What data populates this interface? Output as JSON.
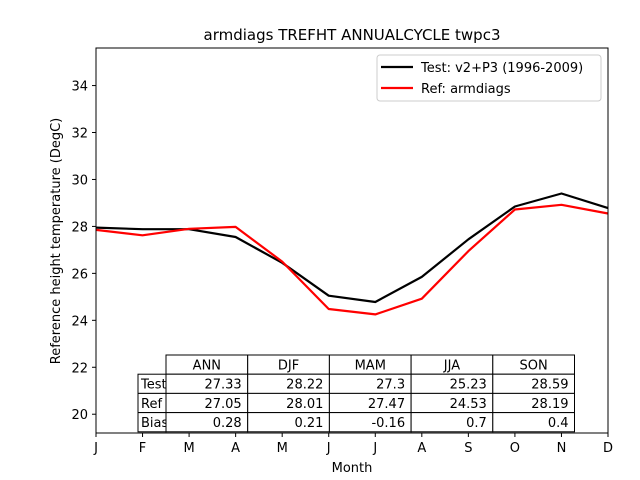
{
  "chart_data": {
    "type": "line",
    "title": "armdiags TREFHT ANNUALCYCLE twpc3",
    "xlabel": "Month",
    "ylabel": "Reference height temperature (DegC)",
    "categories": [
      "J",
      "F",
      "M",
      "A",
      "M",
      "J",
      "J",
      "A",
      "S",
      "O",
      "N",
      "D"
    ],
    "ylim": [
      19.2,
      35.6
    ],
    "yticks": [
      20,
      22,
      24,
      26,
      28,
      30,
      32,
      34
    ],
    "grid": false,
    "legend_position": "upper right",
    "series": [
      {
        "name": "Test: v2+P3 (1996-2009)",
        "color": "#000000",
        "values": [
          27.95,
          27.88,
          27.88,
          27.55,
          26.45,
          25.05,
          24.78,
          25.85,
          27.45,
          28.85,
          29.4,
          28.78
        ]
      },
      {
        "name": "Ref: armdiags",
        "color": "#ff0000",
        "values": [
          27.85,
          27.62,
          27.9,
          27.98,
          26.5,
          24.48,
          24.25,
          24.92,
          26.95,
          28.72,
          28.92,
          28.55
        ]
      }
    ],
    "table": {
      "col_labels": [
        "ANN",
        "DJF",
        "MAM",
        "JJA",
        "SON"
      ],
      "rows": [
        {
          "label": "Test",
          "values": [
            "27.33",
            "28.22",
            "27.3",
            "25.23",
            "28.59"
          ]
        },
        {
          "label": "Ref",
          "values": [
            "27.05",
            "28.01",
            "27.47",
            "24.53",
            "28.19"
          ]
        },
        {
          "label": "Bias",
          "values": [
            "0.28",
            "0.21",
            "-0.16",
            "0.7",
            "0.4"
          ]
        }
      ]
    }
  }
}
